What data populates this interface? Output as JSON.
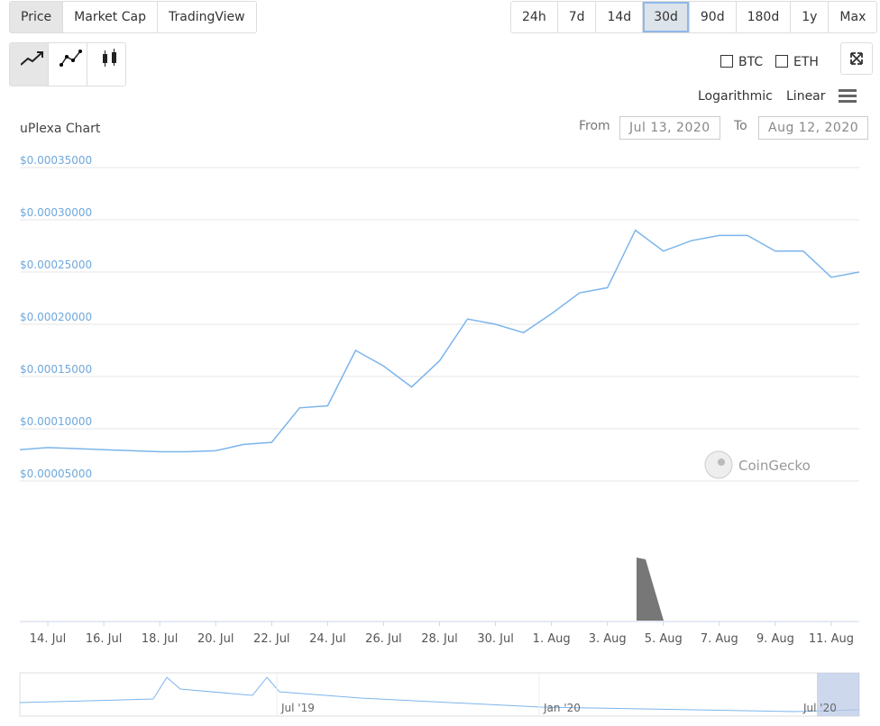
{
  "ui": {
    "tabs": [
      "Price",
      "Market Cap",
      "TradingView"
    ],
    "ranges": [
      "24h",
      "7d",
      "14d",
      "30d",
      "90d",
      "180d",
      "1y",
      "Max"
    ],
    "compare": [
      "BTC",
      "ETH"
    ],
    "scales": [
      "Logarithmic",
      "Linear"
    ],
    "chart_title": "uPlexa Chart",
    "from_label": "From",
    "from_value": "Jul 13, 2020",
    "to_label": "To",
    "to_value": "Aug 12, 2020",
    "watermark": "CoinGecko",
    "navigator_labels": [
      "Jul '19",
      "Jan '20",
      "Jul '20"
    ]
  },
  "chart_data": {
    "type": "line",
    "color": "#7cb5ec",
    "grid": true,
    "x": [
      "2020-07-13",
      "2020-07-14",
      "2020-07-15",
      "2020-07-16",
      "2020-07-17",
      "2020-07-18",
      "2020-07-19",
      "2020-07-20",
      "2020-07-21",
      "2020-07-22",
      "2020-07-23",
      "2020-07-24",
      "2020-07-25",
      "2020-07-26",
      "2020-07-27",
      "2020-07-28",
      "2020-07-29",
      "2020-07-30",
      "2020-07-31",
      "2020-08-01",
      "2020-08-02",
      "2020-08-03",
      "2020-08-04",
      "2020-08-05",
      "2020-08-06",
      "2020-08-07",
      "2020-08-08",
      "2020-08-09",
      "2020-08-10",
      "2020-08-11",
      "2020-08-12"
    ],
    "series": [
      {
        "name": "Price",
        "color": "#7cb5ec",
        "values": [
          8e-05,
          8.2e-05,
          8.1e-05,
          8e-05,
          7.9e-05,
          7.8e-05,
          7.8e-05,
          7.9e-05,
          8.5e-05,
          8.7e-05,
          0.00012,
          0.000122,
          0.000175,
          0.00016,
          0.00014,
          0.000165,
          0.000205,
          0.0002,
          0.000192,
          0.00021,
          0.00023,
          0.000235,
          0.00029,
          0.00027,
          0.00028,
          0.000285,
          0.000285,
          0.00027,
          0.00027,
          0.000245,
          0.00025
        ]
      }
    ],
    "xlim": [
      "2020-07-13",
      "2020-08-12"
    ],
    "xticks": [
      {
        "value": "2020-07-14",
        "label": "14. Jul"
      },
      {
        "value": "2020-07-16",
        "label": "16. Jul"
      },
      {
        "value": "2020-07-18",
        "label": "18. Jul"
      },
      {
        "value": "2020-07-20",
        "label": "20. Jul"
      },
      {
        "value": "2020-07-22",
        "label": "22. Jul"
      },
      {
        "value": "2020-07-24",
        "label": "24. Jul"
      },
      {
        "value": "2020-07-26",
        "label": "26. Jul"
      },
      {
        "value": "2020-07-28",
        "label": "28. Jul"
      },
      {
        "value": "2020-07-30",
        "label": "30. Jul"
      },
      {
        "value": "2020-08-01",
        "label": "1. Aug"
      },
      {
        "value": "2020-08-03",
        "label": "3. Aug"
      },
      {
        "value": "2020-08-05",
        "label": "5. Aug"
      },
      {
        "value": "2020-08-07",
        "label": "7. Aug"
      },
      {
        "value": "2020-08-09",
        "label": "9. Aug"
      },
      {
        "value": "2020-08-11",
        "label": "11. Aug"
      }
    ],
    "ylim": [
      4e-05,
      0.00035
    ],
    "yticks": [
      {
        "value": 5e-05,
        "label": "$0.00005000"
      },
      {
        "value": 0.0001,
        "label": "$0.00010000"
      },
      {
        "value": 0.00015,
        "label": "$0.00015000"
      },
      {
        "value": 0.0002,
        "label": "$0.00020000"
      },
      {
        "value": 0.00025,
        "label": "$0.00025000"
      },
      {
        "value": 0.0003,
        "label": "$0.00030000"
      },
      {
        "value": 0.00035,
        "label": "$0.00035000"
      }
    ]
  }
}
